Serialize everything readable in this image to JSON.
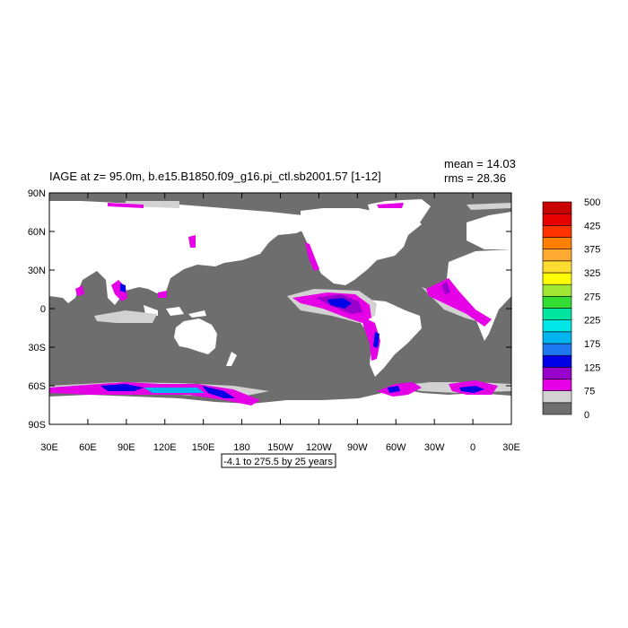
{
  "title": "IAGE at z=  95.0m, b.e15.B1850.f09_g16.pi_ctl.sb2001.57 [1-12]",
  "stats": {
    "mean": "mean = 14.03",
    "rms": "rms = 28.36"
  },
  "range_note": "-4.1 to 275.5 by 25 years",
  "y_ticks": [
    {
      "value": 90,
      "label": "90N"
    },
    {
      "value": 60,
      "label": "60N"
    },
    {
      "value": 30,
      "label": "30N"
    },
    {
      "value": 0,
      "label": "0"
    },
    {
      "value": -30,
      "label": "30S"
    },
    {
      "value": -60,
      "label": "60S"
    },
    {
      "value": -90,
      "label": "90S"
    }
  ],
  "x_ticks": [
    {
      "value": 30,
      "label": "30E"
    },
    {
      "value": 60,
      "label": "60E"
    },
    {
      "value": 90,
      "label": "90E"
    },
    {
      "value": 120,
      "label": "120E"
    },
    {
      "value": 150,
      "label": "150E"
    },
    {
      "value": 180,
      "label": "180"
    },
    {
      "value": 210,
      "label": "150W"
    },
    {
      "value": 240,
      "label": "120W"
    },
    {
      "value": 270,
      "label": "90W"
    },
    {
      "value": 300,
      "label": "60W"
    },
    {
      "value": 330,
      "label": "30W"
    },
    {
      "value": 360,
      "label": "0"
    },
    {
      "value": 390,
      "label": "30E"
    }
  ],
  "colorbar": {
    "colors": [
      "#6e6e6e",
      "#d2d2d2",
      "#e600e6",
      "#9900cc",
      "#0000e6",
      "#1e78f0",
      "#00b4f0",
      "#00e6e6",
      "#00e6a0",
      "#33dd33",
      "#a0e632",
      "#ffff00",
      "#ffdc32",
      "#ffaa32",
      "#ff7f00",
      "#ff3200",
      "#e60000",
      "#c80000"
    ],
    "labels": [
      "0",
      "75",
      "125",
      "175",
      "225",
      "275",
      "325",
      "375",
      "425",
      "500"
    ]
  },
  "colors": {
    "land": "#ffffff",
    "ocean_base": "#6e6e6e",
    "light_grey": "#d2d2d2",
    "magenta": "#e600e6",
    "purple": "#9900cc",
    "blue": "#0000e6",
    "light_blue": "#00b4f0",
    "cyan": "#00e6e6"
  }
}
